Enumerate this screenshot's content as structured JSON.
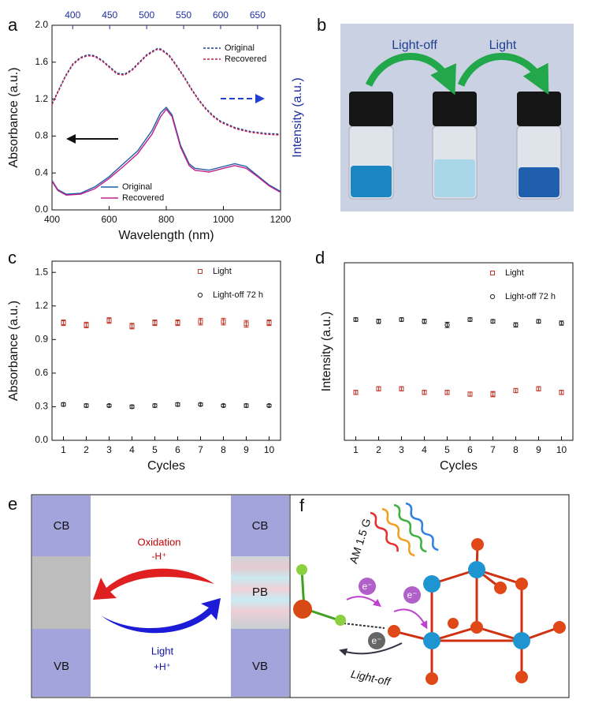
{
  "chart_data": [
    {
      "type": "line",
      "panel_label": "a",
      "xlabel": "Wavelength (nm)",
      "ylabel": "Absorbance (a.u.)",
      "y2label": "Intensity (a.u.)",
      "xlim": [
        400,
        1200
      ],
      "xticks": [
        400,
        600,
        800,
        1000,
        1200
      ],
      "x2lim": [
        372,
        681
      ],
      "x2ticks": [
        400,
        450,
        500,
        550,
        600,
        650
      ],
      "ylim": [
        0,
        2
      ],
      "yticks": [
        {
          "value": 0,
          "label": "0.0"
        },
        0.4,
        0.8,
        1.2,
        1.6,
        {
          "value": 2,
          "label": "2.0"
        }
      ],
      "y2lim": [
        0,
        2
      ],
      "series": [
        {
          "name": "Original",
          "color": "#1f5fa8",
          "dash": false,
          "x": [
            400,
            420,
            450,
            500,
            550,
            600,
            650,
            700,
            750,
            780,
            800,
            820,
            850,
            880,
            900,
            950,
            1000,
            1040,
            1080,
            1120,
            1160,
            1200
          ],
          "values": [
            0.32,
            0.22,
            0.17,
            0.18,
            0.25,
            0.36,
            0.5,
            0.64,
            0.86,
            1.05,
            1.11,
            1.03,
            0.7,
            0.5,
            0.45,
            0.43,
            0.47,
            0.5,
            0.47,
            0.37,
            0.27,
            0.2
          ]
        },
        {
          "name": "Recovered",
          "color": "#c0208a",
          "dash": false,
          "x": [
            400,
            420,
            450,
            500,
            550,
            600,
            650,
            700,
            750,
            780,
            800,
            820,
            850,
            880,
            900,
            950,
            1000,
            1040,
            1080,
            1120,
            1160,
            1200
          ],
          "values": [
            0.31,
            0.21,
            0.16,
            0.17,
            0.23,
            0.34,
            0.47,
            0.61,
            0.82,
            1.01,
            1.09,
            1.01,
            0.68,
            0.48,
            0.43,
            0.41,
            0.45,
            0.48,
            0.45,
            0.36,
            0.26,
            0.19
          ]
        },
        {
          "name": "Original",
          "color": "#1f3f8f",
          "dash": true,
          "axis": "y2",
          "x": [
            372,
            390,
            400,
            410,
            420,
            430,
            440,
            450,
            460,
            470,
            480,
            490,
            500,
            510,
            515,
            520,
            530,
            540,
            550,
            560,
            570,
            580,
            590,
            600,
            620,
            640,
            660,
            681
          ],
          "values": [
            1.15,
            1.45,
            1.58,
            1.65,
            1.68,
            1.67,
            1.62,
            1.55,
            1.48,
            1.47,
            1.52,
            1.6,
            1.68,
            1.73,
            1.75,
            1.74,
            1.68,
            1.57,
            1.45,
            1.32,
            1.2,
            1.1,
            1.02,
            0.96,
            0.89,
            0.85,
            0.83,
            0.82
          ]
        },
        {
          "name": "Recovered",
          "color": "#c8204a",
          "dash": true,
          "axis": "y2",
          "x": [
            372,
            390,
            400,
            410,
            420,
            430,
            440,
            450,
            460,
            470,
            480,
            490,
            500,
            510,
            515,
            520,
            530,
            540,
            550,
            560,
            570,
            580,
            590,
            600,
            620,
            640,
            660,
            681
          ],
          "values": [
            1.14,
            1.44,
            1.57,
            1.64,
            1.67,
            1.66,
            1.61,
            1.54,
            1.47,
            1.46,
            1.51,
            1.59,
            1.67,
            1.72,
            1.74,
            1.73,
            1.67,
            1.56,
            1.44,
            1.31,
            1.19,
            1.09,
            1.01,
            0.95,
            0.88,
            0.84,
            0.82,
            0.81
          ]
        }
      ]
    },
    {
      "type": "scatter",
      "panel_label": "c",
      "xlabel": "Cycles",
      "ylabel": "Absorbance (a.u.)",
      "xlim": [
        0.5,
        10.5
      ],
      "xticks": [
        1,
        2,
        3,
        4,
        5,
        6,
        7,
        8,
        9,
        10
      ],
      "ylim": [
        0,
        1.6
      ],
      "yticks": [
        {
          "value": 0,
          "label": "0.0"
        },
        0.3,
        0.6,
        0.9,
        1.2,
        1.5
      ],
      "series": [
        {
          "name": "Light",
          "color": "#c0392b",
          "marker": "square",
          "x": [
            1,
            2,
            3,
            4,
            5,
            6,
            7,
            8,
            9,
            10
          ],
          "values": [
            1.05,
            1.03,
            1.07,
            1.02,
            1.05,
            1.05,
            1.06,
            1.06,
            1.04,
            1.05
          ],
          "errors": [
            0.025,
            0.025,
            0.025,
            0.025,
            0.025,
            0.025,
            0.03,
            0.03,
            0.03,
            0.025
          ]
        },
        {
          "name": "Light-off 72 h",
          "color": "#222222",
          "marker": "circle",
          "x": [
            1,
            2,
            3,
            4,
            5,
            6,
            7,
            8,
            9,
            10
          ],
          "values": [
            0.32,
            0.31,
            0.31,
            0.3,
            0.31,
            0.32,
            0.32,
            0.31,
            0.31,
            0.31
          ],
          "errors": [
            0.015,
            0.015,
            0.012,
            0.015,
            0.015,
            0.015,
            0.012,
            0.012,
            0.015,
            0.012
          ]
        }
      ]
    },
    {
      "type": "scatter",
      "panel_label": "d",
      "xlabel": "Cycles",
      "ylabel": "Intensity (a.u.)",
      "xlim": [
        0.5,
        10.5
      ],
      "xticks": [
        1,
        2,
        3,
        4,
        5,
        6,
        7,
        8,
        9,
        10
      ],
      "ylim": [
        0,
        1
      ],
      "series": [
        {
          "name": "Light",
          "color": "#c0392b",
          "marker": "square",
          "x": [
            1,
            2,
            3,
            4,
            5,
            6,
            7,
            8,
            9,
            10
          ],
          "values": [
            0.27,
            0.29,
            0.29,
            0.27,
            0.27,
            0.26,
            0.26,
            0.28,
            0.29,
            0.27
          ],
          "errors": [
            0.012,
            0.012,
            0.012,
            0.012,
            0.012,
            0.012,
            0.015,
            0.012,
            0.012,
            0.012
          ]
        },
        {
          "name": "Light-off 72 h",
          "color": "#222222",
          "marker": "circle",
          "x": [
            1,
            2,
            3,
            4,
            5,
            6,
            7,
            8,
            9,
            10
          ],
          "values": [
            0.68,
            0.67,
            0.68,
            0.67,
            0.65,
            0.68,
            0.67,
            0.65,
            0.67,
            0.66
          ],
          "errors": [
            0.01,
            0.012,
            0.01,
            0.012,
            0.015,
            0.01,
            0.01,
            0.012,
            0.01,
            0.012
          ]
        }
      ]
    }
  ],
  "panels": {
    "b": {
      "label": "b",
      "arrows": [
        "Light-off",
        "Light"
      ]
    },
    "e": {
      "label": "e",
      "left": [
        "CB",
        "VB"
      ],
      "right": [
        "CB",
        "PB",
        "VB"
      ],
      "oxidation": "Oxidation",
      "minus_h": "-H⁺",
      "light": "Light",
      "plus_h": "+H⁺"
    },
    "f": {
      "label": "f",
      "source": "AM 1.5 G",
      "electrons": [
        "e⁻",
        "e⁻",
        "e⁻"
      ],
      "light_off": "Light-off"
    }
  }
}
